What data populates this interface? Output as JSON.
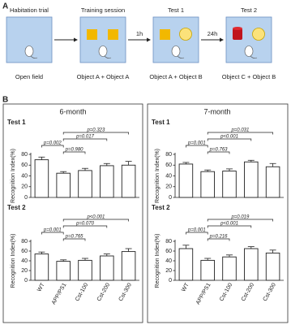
{
  "panel_a": {
    "label": "A",
    "stages": [
      {
        "title": "Habitation trial",
        "caption": "Open field"
      },
      {
        "title": "Training session",
        "caption": "Object A + Object A"
      },
      {
        "title": "Test 1",
        "caption": "Object A + Object B"
      },
      {
        "title": "Test 2",
        "caption": "Object C + Object B"
      }
    ],
    "intervals": [
      "1h",
      "24h"
    ]
  },
  "panel_b": {
    "label": "B",
    "groups": [
      "6-month",
      "7-month"
    ]
  },
  "chart_data": [
    {
      "type": "bar",
      "title": "Test 1",
      "y_label": "Recognition Index(%)",
      "categories": [
        null,
        null,
        null,
        null,
        null
      ],
      "values": [
        70,
        45,
        50,
        59,
        60
      ],
      "error": [
        5,
        3,
        4,
        4,
        7
      ],
      "color": "#ffffff",
      "ylim": [
        0,
        80
      ],
      "yticks": [
        0,
        20,
        40,
        60,
        80
      ],
      "comparisons": [
        {
          "label": "p=0.323",
          "between": [
            1,
            4
          ]
        },
        {
          "label": "p=0.017",
          "between": [
            1,
            3
          ]
        },
        {
          "label": "p=0.002",
          "between": [
            0,
            1
          ]
        },
        {
          "label": "p=0.980",
          "between": [
            1,
            2
          ]
        }
      ]
    },
    {
      "type": "bar",
      "title": "Test 2",
      "y_label": "Recognition Index(%)",
      "categories": [
        "WT",
        "APP/PS1",
        "Cst-100",
        "Cst-200",
        "Cst-300"
      ],
      "values": [
        54,
        39,
        41,
        50,
        59
      ],
      "error": [
        4,
        3,
        4,
        4,
        6
      ],
      "color": "#ffffff",
      "ylim": [
        0,
        80
      ],
      "yticks": [
        0,
        20,
        40,
        60,
        80
      ],
      "comparisons": [
        {
          "label": "p<0.001",
          "between": [
            1,
            4
          ]
        },
        {
          "label": "p=0.070",
          "between": [
            1,
            3
          ]
        },
        {
          "label": "p=0.001",
          "between": [
            0,
            1
          ]
        },
        {
          "label": "p=0.765",
          "between": [
            1,
            2
          ]
        }
      ]
    },
    {
      "type": "bar",
      "title": "Test 1",
      "y_label": "Recognition Index(%)",
      "categories": [
        null,
        null,
        null,
        null,
        null
      ],
      "values": [
        62,
        48,
        49,
        66,
        57
      ],
      "error": [
        3,
        3,
        4,
        3,
        6
      ],
      "color": "#ffffff",
      "ylim": [
        0,
        80
      ],
      "yticks": [
        0,
        20,
        40,
        60,
        80
      ],
      "comparisons": [
        {
          "label": "p=0.031",
          "between": [
            1,
            4
          ]
        },
        {
          "label": "p<0.001",
          "between": [
            1,
            3
          ]
        },
        {
          "label": "p=0.001",
          "between": [
            0,
            1
          ]
        },
        {
          "label": "p=0.763",
          "between": [
            1,
            2
          ]
        }
      ]
    },
    {
      "type": "bar",
      "title": "Test 2",
      "y_label": "Recognition Index(%)",
      "categories": [
        "WT",
        "APP/PS1",
        "Cst-100",
        "Cst-200",
        "Cst-300"
      ],
      "values": [
        65,
        41,
        48,
        65,
        56
      ],
      "error": [
        7,
        4,
        4,
        4,
        6
      ],
      "color": "#ffffff",
      "ylim": [
        0,
        80
      ],
      "yticks": [
        0,
        20,
        40,
        60,
        80
      ],
      "comparisons": [
        {
          "label": "p=0.019",
          "between": [
            1,
            4
          ]
        },
        {
          "label": "p<0.001",
          "between": [
            1,
            3
          ]
        },
        {
          "label": "p=0.001",
          "between": [
            0,
            1
          ]
        },
        {
          "label": "p=0.216",
          "between": [
            1,
            2
          ]
        }
      ]
    }
  ]
}
